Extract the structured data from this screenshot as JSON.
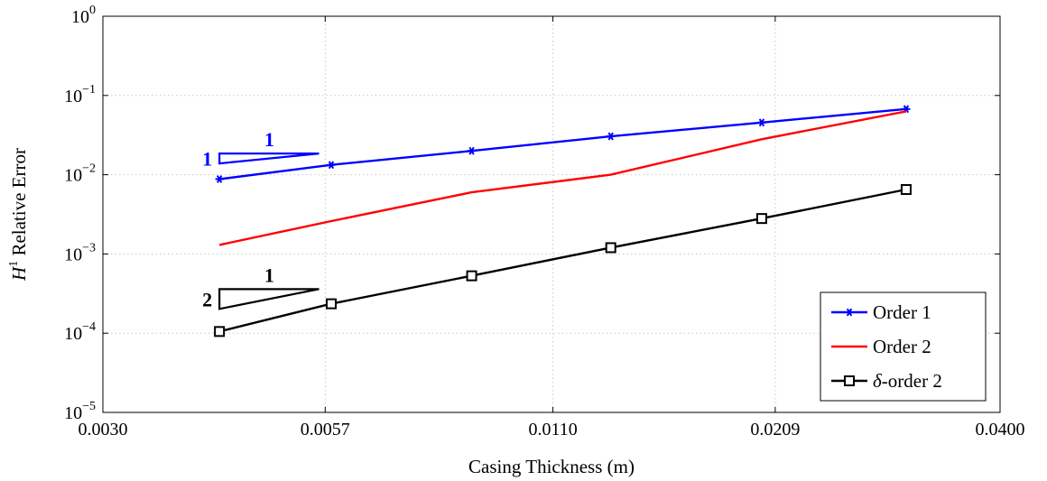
{
  "chart_data": {
    "type": "line",
    "title": "",
    "xlabel": "Casing Thickness (m)",
    "ylabel_base": "H",
    "ylabel_sup": "1",
    "ylabel_rest": " Relative Error",
    "xscale": "log",
    "yscale": "log",
    "xlim": [
      0.003,
      0.04
    ],
    "ylim": [
      1e-05,
      1
    ],
    "xticks": [
      {
        "value": 0.003,
        "label": "0.0030"
      },
      {
        "value": 0.0057,
        "label": "0.0057"
      },
      {
        "value": 0.011,
        "label": "0.0110"
      },
      {
        "value": 0.0209,
        "label": "0.0209"
      },
      {
        "value": 0.04,
        "label": "0.0400"
      }
    ],
    "yticks": [
      {
        "value": 1,
        "base": "10",
        "exp": "0"
      },
      {
        "value": 0.1,
        "base": "10",
        "exp": "−1"
      },
      {
        "value": 0.01,
        "base": "10",
        "exp": "−2"
      },
      {
        "value": 0.001,
        "base": "10",
        "exp": "−3"
      },
      {
        "value": 0.0001,
        "base": "10",
        "exp": "−4"
      },
      {
        "value": 1e-05,
        "base": "10",
        "exp": "−5"
      }
    ],
    "grid": true,
    "legend_position": "bottom-right",
    "series": [
      {
        "name": "Order 1",
        "color": "#0000ff",
        "marker": "asterisk",
        "x": [
          0.0042,
          0.0058,
          0.0087,
          0.013,
          0.0201,
          0.0305
        ],
        "y": [
          0.0088,
          0.0133,
          0.02,
          0.0305,
          0.0455,
          0.0675
        ]
      },
      {
        "name": "Order 2",
        "color": "#ff0000",
        "marker": "none",
        "x": [
          0.0042,
          0.0058,
          0.0087,
          0.013,
          0.0201,
          0.0305
        ],
        "y": [
          0.0013,
          0.0026,
          0.006,
          0.01,
          0.028,
          0.063
        ]
      },
      {
        "name": "δ-order 2",
        "color": "#000000",
        "marker": "square",
        "x": [
          0.0042,
          0.0058,
          0.0087,
          0.013,
          0.0201,
          0.0305
        ],
        "y": [
          0.000105,
          0.000235,
          0.00053,
          0.0012,
          0.0028,
          0.0065
        ]
      }
    ],
    "slope_triangles": [
      {
        "color": "#0000ff",
        "x_start": 0.0042,
        "x_end": 0.0056,
        "y_top": 0.0185,
        "slope": 1,
        "run_label": "1",
        "rise_label": "1"
      },
      {
        "color": "#000000",
        "x_start": 0.0042,
        "x_end": 0.0056,
        "y_top": 0.00036,
        "slope": 2,
        "run_label": "1",
        "rise_label": "2"
      }
    ]
  }
}
